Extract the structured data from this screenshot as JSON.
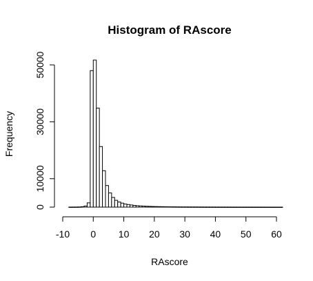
{
  "chart_data": {
    "type": "bar",
    "title": "Histogram of RAscore",
    "xlabel": "RAscore",
    "ylabel": "Frequency",
    "xlim": [
      -10,
      60
    ],
    "ylim": [
      0,
      50000
    ],
    "x_ticks": [
      -10,
      0,
      10,
      20,
      30,
      40,
      50,
      60
    ],
    "x_tick_labels": [
      "-10",
      "0",
      "10",
      "20",
      "30",
      "40",
      "50",
      "60"
    ],
    "y_ticks": [
      0,
      10000,
      30000,
      50000
    ],
    "y_tick_labels": [
      "0",
      "10000",
      "30000",
      "50000"
    ],
    "bin_width": 1,
    "bin_starts": [
      -8,
      -7,
      -6,
      -5,
      -4,
      -3,
      -2,
      -1,
      0,
      1,
      2,
      3,
      4,
      5,
      6,
      7,
      8,
      9,
      10,
      11,
      12,
      13,
      14,
      15,
      16,
      17,
      18,
      19,
      20,
      21,
      22,
      23,
      24,
      25,
      26,
      27,
      28,
      29,
      30,
      31,
      32,
      33,
      34,
      35,
      36,
      37,
      38,
      39,
      40,
      41,
      42,
      43,
      44,
      45,
      46,
      47,
      48,
      49,
      50,
      51,
      52,
      53,
      54,
      55,
      56,
      57,
      58,
      59,
      60,
      61
    ],
    "values": [
      20,
      30,
      40,
      60,
      150,
      400,
      1500,
      48000,
      51700,
      34800,
      21300,
      12800,
      7600,
      5000,
      3400,
      2400,
      1800,
      1400,
      1100,
      900,
      750,
      600,
      500,
      420,
      360,
      310,
      270,
      230,
      200,
      180,
      160,
      140,
      120,
      110,
      100,
      90,
      80,
      75,
      70,
      65,
      60,
      55,
      50,
      45,
      40,
      38,
      36,
      34,
      32,
      30,
      28,
      26,
      24,
      22,
      20,
      19,
      18,
      17,
      16,
      15,
      14,
      13,
      12,
      11,
      10,
      9,
      8,
      7,
      6,
      5
    ],
    "grid": false
  }
}
